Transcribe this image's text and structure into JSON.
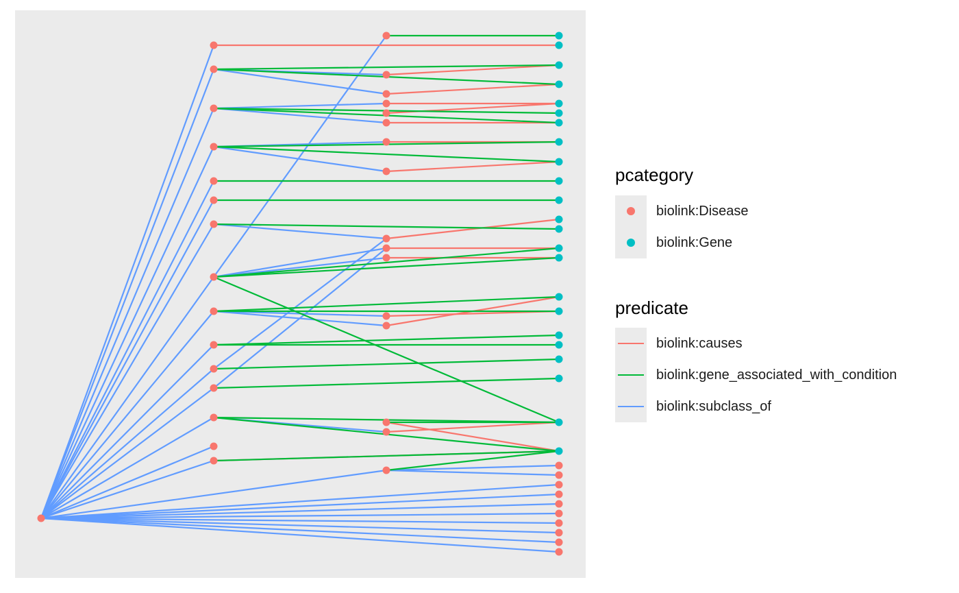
{
  "colors": {
    "panel_background": "#ebebeb",
    "disease": "#f8766d",
    "gene": "#00bfc4",
    "causes": "#f8766d",
    "gene_associated_with_condition": "#00ba38",
    "subclass_of": "#619cff"
  },
  "legend": {
    "pcategory": {
      "title": "pcategory",
      "items": [
        {
          "label": "biolink:Disease",
          "color": "#f8766d"
        },
        {
          "label": "biolink:Gene",
          "color": "#00bfc4"
        }
      ]
    },
    "predicate": {
      "title": "predicate",
      "items": [
        {
          "label": "biolink:causes",
          "color": "#f8766d"
        },
        {
          "label": "biolink:gene_associated_with_condition",
          "color": "#00ba38"
        },
        {
          "label": "biolink:subclass_of",
          "color": "#619cff"
        }
      ]
    }
  },
  "graph": {
    "nodes": [
      {
        "id": "r",
        "category": "disease"
      },
      {
        "id": "a1",
        "category": "disease"
      },
      {
        "id": "a2",
        "category": "disease"
      },
      {
        "id": "a3",
        "category": "disease"
      },
      {
        "id": "a4",
        "category": "disease"
      },
      {
        "id": "a5",
        "category": "disease"
      },
      {
        "id": "a6",
        "category": "disease"
      },
      {
        "id": "a7",
        "category": "disease"
      },
      {
        "id": "a8",
        "category": "disease"
      },
      {
        "id": "a9",
        "category": "disease"
      },
      {
        "id": "a10",
        "category": "disease"
      },
      {
        "id": "a11",
        "category": "disease"
      },
      {
        "id": "a12",
        "category": "disease"
      },
      {
        "id": "a13",
        "category": "disease"
      },
      {
        "id": "a14",
        "category": "disease"
      },
      {
        "id": "a15",
        "category": "disease"
      },
      {
        "id": "b1",
        "category": "disease"
      },
      {
        "id": "b2",
        "category": "disease"
      },
      {
        "id": "b3",
        "category": "disease"
      },
      {
        "id": "b4",
        "category": "disease"
      },
      {
        "id": "b5",
        "category": "disease"
      },
      {
        "id": "b6",
        "category": "disease"
      },
      {
        "id": "b7",
        "category": "disease"
      },
      {
        "id": "b8",
        "category": "disease"
      },
      {
        "id": "b9",
        "category": "disease"
      },
      {
        "id": "b10",
        "category": "disease"
      },
      {
        "id": "b11",
        "category": "disease"
      },
      {
        "id": "b12",
        "category": "disease"
      },
      {
        "id": "b13",
        "category": "disease"
      },
      {
        "id": "b14",
        "category": "disease"
      },
      {
        "id": "b15",
        "category": "disease"
      },
      {
        "id": "b16",
        "category": "disease"
      },
      {
        "id": "g1",
        "category": "gene"
      },
      {
        "id": "g2",
        "category": "gene"
      },
      {
        "id": "g3",
        "category": "gene"
      },
      {
        "id": "g4",
        "category": "gene"
      },
      {
        "id": "g5",
        "category": "gene"
      },
      {
        "id": "g6",
        "category": "gene"
      },
      {
        "id": "g7",
        "category": "gene"
      },
      {
        "id": "g8",
        "category": "gene"
      },
      {
        "id": "g9",
        "category": "gene"
      },
      {
        "id": "g10",
        "category": "gene"
      },
      {
        "id": "g11",
        "category": "gene"
      },
      {
        "id": "g12",
        "category": "gene"
      },
      {
        "id": "g13",
        "category": "gene"
      },
      {
        "id": "g14",
        "category": "gene"
      },
      {
        "id": "g15",
        "category": "gene"
      },
      {
        "id": "g16",
        "category": "gene"
      },
      {
        "id": "g17",
        "category": "gene"
      },
      {
        "id": "g18",
        "category": "gene"
      },
      {
        "id": "g19",
        "category": "gene"
      },
      {
        "id": "g20",
        "category": "gene"
      },
      {
        "id": "g21",
        "category": "gene"
      },
      {
        "id": "g22",
        "category": "gene"
      },
      {
        "id": "g23",
        "category": "gene"
      },
      {
        "id": "d1",
        "category": "disease"
      },
      {
        "id": "d2",
        "category": "disease"
      },
      {
        "id": "d3",
        "category": "disease"
      },
      {
        "id": "d4",
        "category": "disease"
      },
      {
        "id": "d5",
        "category": "disease"
      },
      {
        "id": "d6",
        "category": "disease"
      },
      {
        "id": "d7",
        "category": "disease"
      },
      {
        "id": "d8",
        "category": "disease"
      },
      {
        "id": "d9",
        "category": "disease"
      },
      {
        "id": "d10",
        "category": "disease"
      }
    ],
    "edges": [
      [
        "r",
        "a1",
        "subclass_of"
      ],
      [
        "r",
        "a2",
        "subclass_of"
      ],
      [
        "r",
        "a3",
        "subclass_of"
      ],
      [
        "r",
        "a4",
        "subclass_of"
      ],
      [
        "r",
        "a5",
        "subclass_of"
      ],
      [
        "r",
        "a6",
        "subclass_of"
      ],
      [
        "r",
        "a7",
        "subclass_of"
      ],
      [
        "r",
        "a8",
        "subclass_of"
      ],
      [
        "r",
        "a9",
        "subclass_of"
      ],
      [
        "r",
        "a10",
        "subclass_of"
      ],
      [
        "r",
        "a11",
        "subclass_of"
      ],
      [
        "r",
        "a12",
        "subclass_of"
      ],
      [
        "r",
        "a13",
        "subclass_of"
      ],
      [
        "r",
        "a14",
        "subclass_of"
      ],
      [
        "r",
        "a15",
        "subclass_of"
      ],
      [
        "r",
        "b16",
        "subclass_of"
      ],
      [
        "r",
        "d3",
        "subclass_of"
      ],
      [
        "r",
        "d4",
        "subclass_of"
      ],
      [
        "r",
        "d5",
        "subclass_of"
      ],
      [
        "r",
        "d6",
        "subclass_of"
      ],
      [
        "r",
        "d7",
        "subclass_of"
      ],
      [
        "r",
        "d8",
        "subclass_of"
      ],
      [
        "r",
        "d9",
        "subclass_of"
      ],
      [
        "r",
        "d10",
        "subclass_of"
      ],
      [
        "a8",
        "b1",
        "subclass_of"
      ],
      [
        "a11",
        "b9",
        "subclass_of"
      ],
      [
        "a12",
        "b10",
        "subclass_of"
      ],
      [
        "a2",
        "b2",
        "subclass_of"
      ],
      [
        "a2",
        "b3",
        "subclass_of"
      ],
      [
        "a3",
        "b4",
        "subclass_of"
      ],
      [
        "a3",
        "b6",
        "subclass_of"
      ],
      [
        "a4",
        "b7",
        "subclass_of"
      ],
      [
        "a4",
        "b8",
        "subclass_of"
      ],
      [
        "a7",
        "b9",
        "subclass_of"
      ],
      [
        "a8",
        "b10",
        "subclass_of"
      ],
      [
        "a8",
        "b11",
        "subclass_of"
      ],
      [
        "a9",
        "b12",
        "subclass_of"
      ],
      [
        "a9",
        "b13",
        "subclass_of"
      ],
      [
        "a13",
        "b15",
        "subclass_of"
      ],
      [
        "b16",
        "d1",
        "subclass_of"
      ],
      [
        "b16",
        "d2",
        "subclass_of"
      ],
      [
        "a1",
        "g2",
        "causes"
      ],
      [
        "b2",
        "g3",
        "causes"
      ],
      [
        "b3",
        "g4",
        "causes"
      ],
      [
        "b4",
        "g5",
        "causes"
      ],
      [
        "b5",
        "g5",
        "causes"
      ],
      [
        "b6",
        "g7",
        "causes"
      ],
      [
        "b7",
        "g8",
        "causes"
      ],
      [
        "b8",
        "g9",
        "causes"
      ],
      [
        "b9",
        "g12",
        "causes"
      ],
      [
        "b10",
        "g14",
        "causes"
      ],
      [
        "b11",
        "g15",
        "causes"
      ],
      [
        "b12",
        "g17",
        "causes"
      ],
      [
        "b13",
        "g16",
        "causes"
      ],
      [
        "b14",
        "g23",
        "causes"
      ],
      [
        "b15",
        "g22",
        "causes"
      ],
      [
        "a14",
        "g23",
        "causes"
      ],
      [
        "b1",
        "g1",
        "gene_associated_with_condition"
      ],
      [
        "a2",
        "g3",
        "gene_associated_with_condition"
      ],
      [
        "a2",
        "g4",
        "gene_associated_with_condition"
      ],
      [
        "a3",
        "g6",
        "gene_associated_with_condition"
      ],
      [
        "a3",
        "g7",
        "gene_associated_with_condition"
      ],
      [
        "a4",
        "g8",
        "gene_associated_with_condition"
      ],
      [
        "a4",
        "g9",
        "gene_associated_with_condition"
      ],
      [
        "a5",
        "g10",
        "gene_associated_with_condition"
      ],
      [
        "a6",
        "g11",
        "gene_associated_with_condition"
      ],
      [
        "a7",
        "g13",
        "gene_associated_with_condition"
      ],
      [
        "a8",
        "g14",
        "gene_associated_with_condition"
      ],
      [
        "a8",
        "g15",
        "gene_associated_with_condition"
      ],
      [
        "a8",
        "g22",
        "gene_associated_with_condition"
      ],
      [
        "a9",
        "g16",
        "gene_associated_with_condition"
      ],
      [
        "a9",
        "g17",
        "gene_associated_with_condition"
      ],
      [
        "a10",
        "g18",
        "gene_associated_with_condition"
      ],
      [
        "a10",
        "g19",
        "gene_associated_with_condition"
      ],
      [
        "a11",
        "g20",
        "gene_associated_with_condition"
      ],
      [
        "a12",
        "g21",
        "gene_associated_with_condition"
      ],
      [
        "a13",
        "g22",
        "gene_associated_with_condition"
      ],
      [
        "a13",
        "g23",
        "gene_associated_with_condition"
      ],
      [
        "a14",
        "g23",
        "gene_associated_with_condition"
      ],
      [
        "b14",
        "g22",
        "gene_associated_with_condition"
      ],
      [
        "b16",
        "g23",
        "gene_associated_with_condition"
      ]
    ]
  }
}
